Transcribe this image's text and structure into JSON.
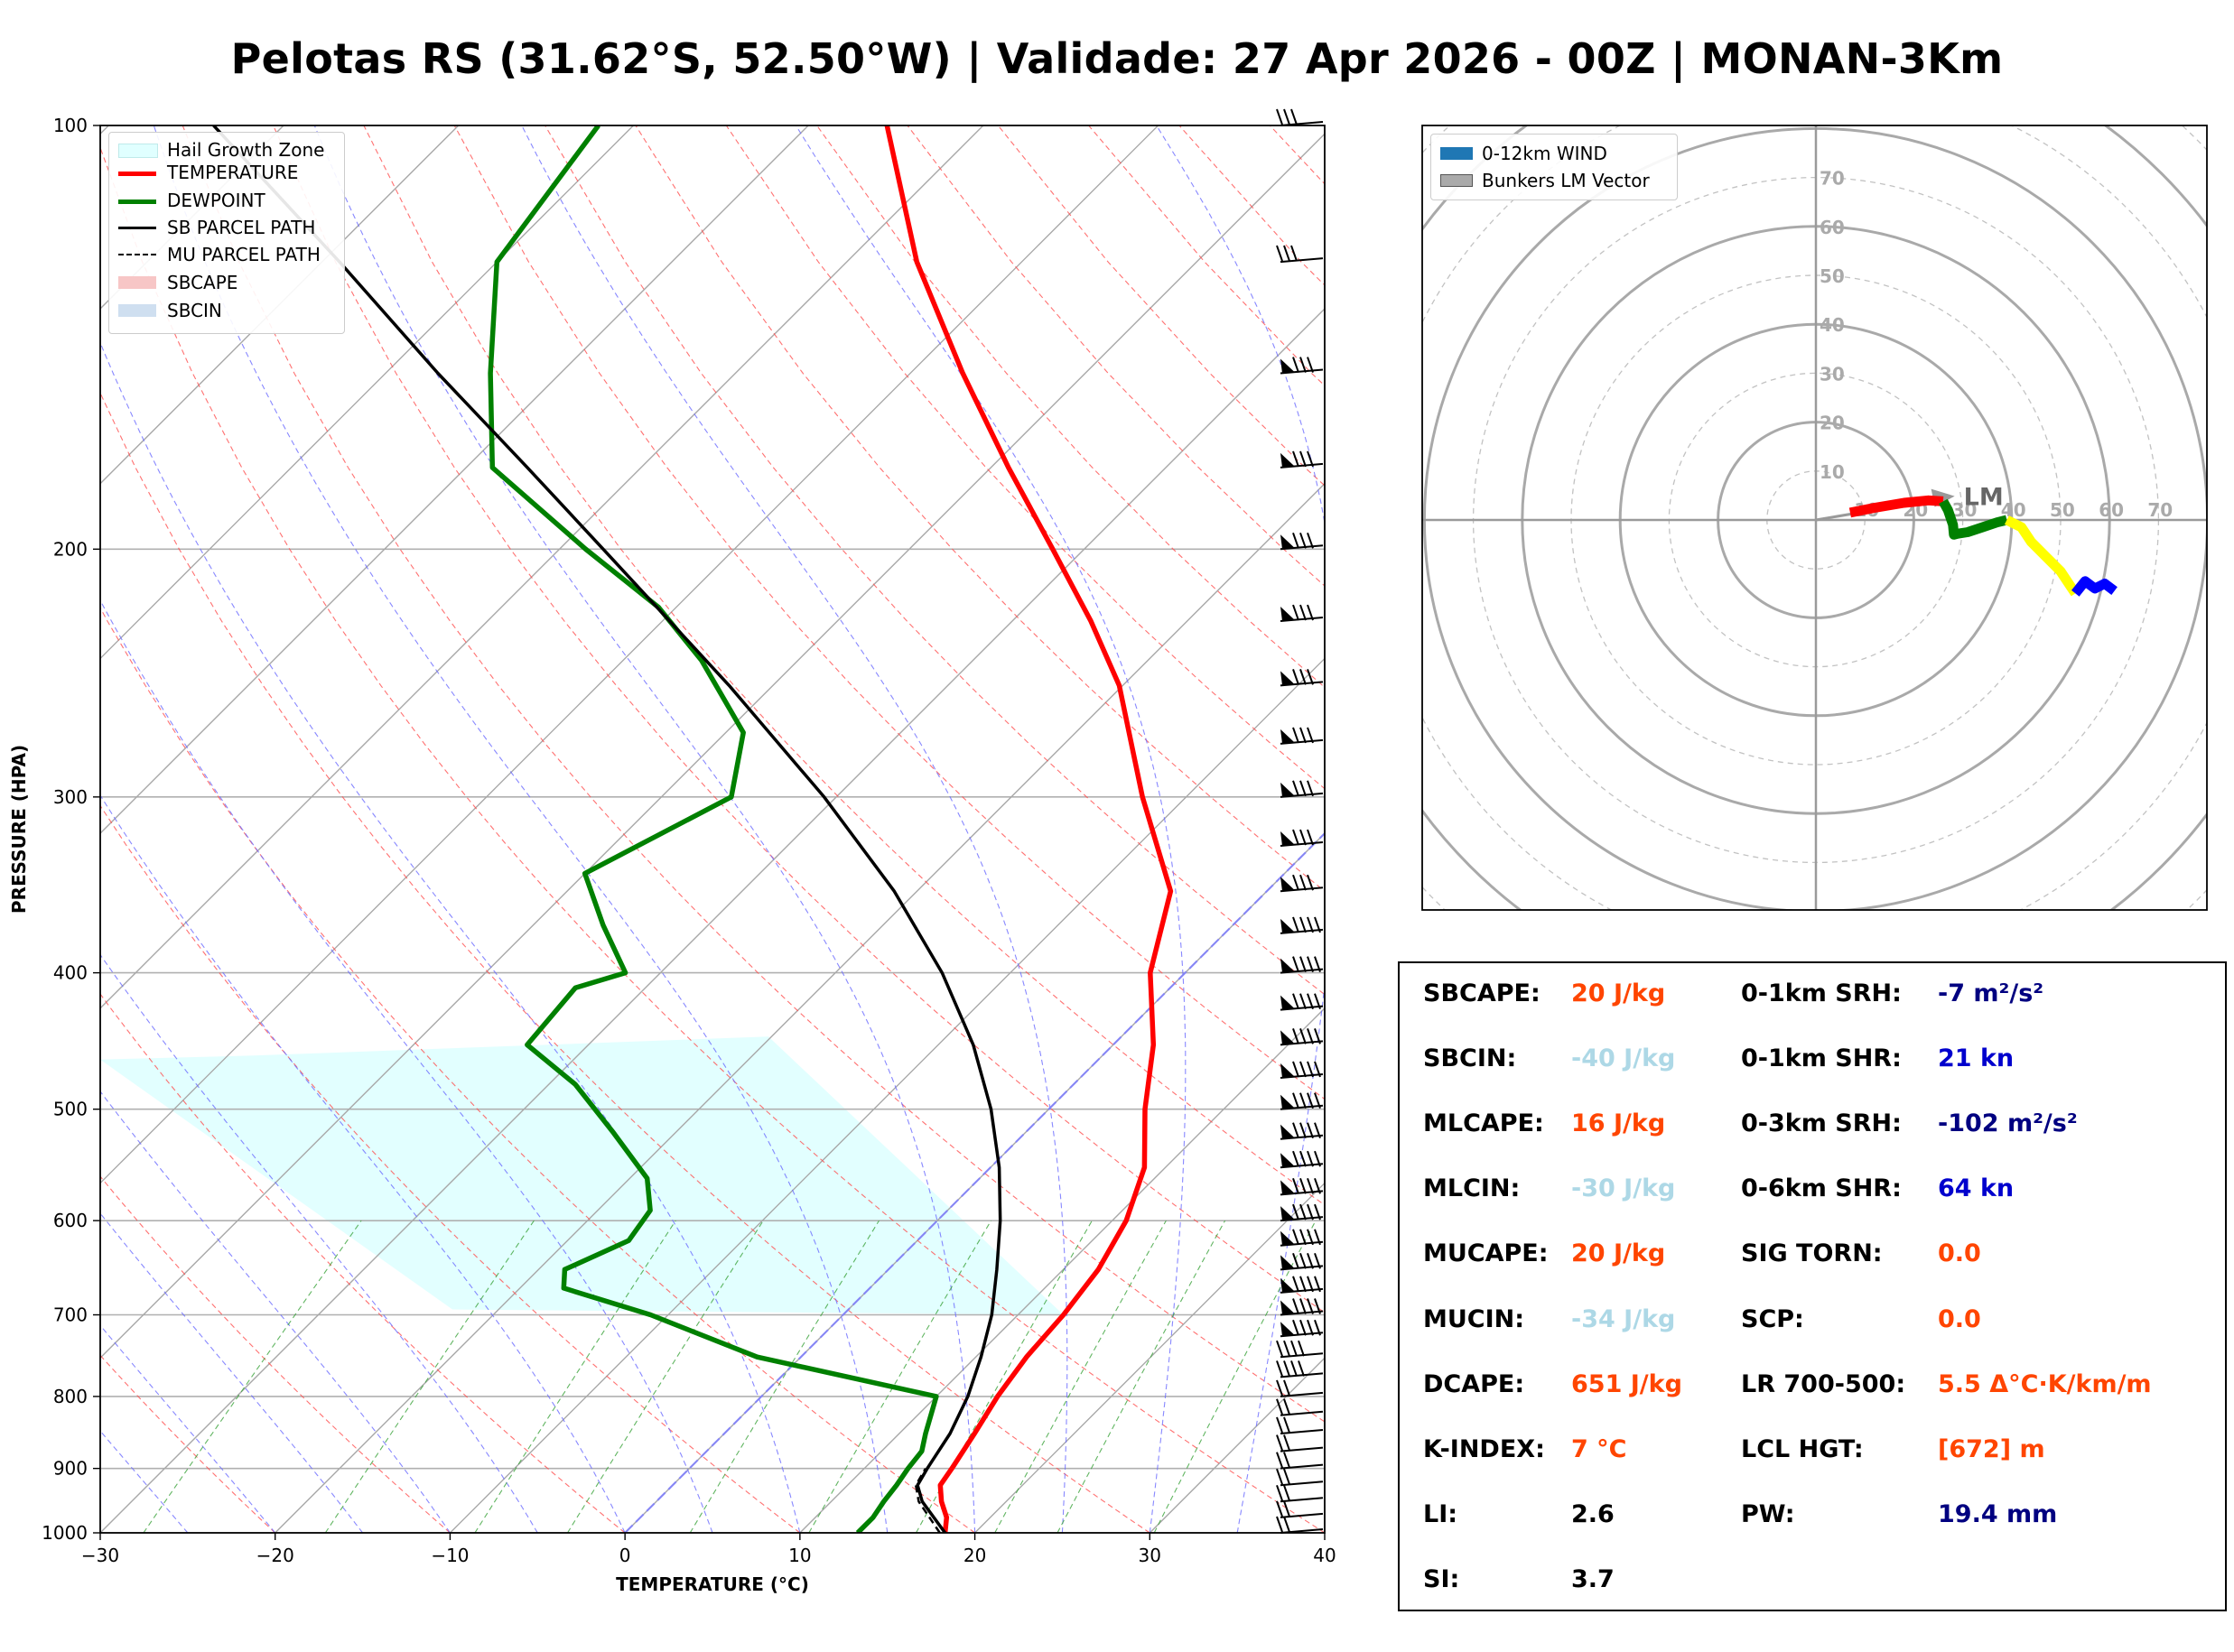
{
  "title": "Pelotas RS (31.62°S, 52.50°W) | Validade: 27 Apr 2026 - 00Z | MONAN-3Km",
  "skewt": {
    "xlabel": "TEMPERATURE (°C)",
    "ylabel": "PRESSURE (HPA)",
    "xlim": [
      -30,
      40
    ],
    "ylim": [
      1000,
      100
    ],
    "xticks": [
      "−30",
      "−20",
      "−10",
      "0",
      "10",
      "20",
      "30",
      "40"
    ],
    "yticks": [
      "1000",
      "900",
      "800",
      "700",
      "600",
      "500",
      "400",
      "300",
      "200",
      "100"
    ],
    "legend": [
      {
        "label": "Hail Growth Zone",
        "color": "#e0ffff"
      },
      {
        "label": "TEMPERATURE",
        "color": "#ff0000"
      },
      {
        "label": "DEWPOINT",
        "color": "#008000"
      },
      {
        "label": "SB PARCEL PATH",
        "color": "#000000"
      },
      {
        "label": "MU PARCEL PATH",
        "color": "#000000"
      },
      {
        "label": "SBCAPE",
        "color": "#f7c6c6"
      },
      {
        "label": "SBCIN",
        "color": "#cfdff0"
      }
    ]
  },
  "chart_data": {
    "type": "line",
    "x_axis": "temperature_C",
    "y_axis": "pressure_hPa",
    "series": [
      {
        "name": "TEMPERATURE",
        "color": "#ff0000",
        "points": [
          [
            1000,
            18.3
          ],
          [
            975,
            17.5
          ],
          [
            950,
            16.3
          ],
          [
            925,
            15.3
          ],
          [
            900,
            15.0
          ],
          [
            850,
            14.3
          ],
          [
            800,
            13.5
          ],
          [
            750,
            12.9
          ],
          [
            700,
            12.6
          ],
          [
            650,
            12.0
          ],
          [
            600,
            10.8
          ],
          [
            550,
            8.8
          ],
          [
            500,
            5.5
          ],
          [
            450,
            2.3
          ],
          [
            400,
            -2.0
          ],
          [
            350,
            -5.5
          ],
          [
            300,
            -12.5
          ],
          [
            250,
            -20.2
          ],
          [
            225,
            -25.5
          ],
          [
            200,
            -31.8
          ],
          [
            175,
            -39.0
          ],
          [
            150,
            -47.0
          ],
          [
            125,
            -56.0
          ],
          [
            100,
            -65.5
          ]
        ]
      },
      {
        "name": "DEWPOINT",
        "color": "#008000",
        "points": [
          [
            1000,
            13.3
          ],
          [
            975,
            13.3
          ],
          [
            950,
            13.0
          ],
          [
            925,
            12.8
          ],
          [
            900,
            12.5
          ],
          [
            875,
            12.3
          ],
          [
            850,
            11.5
          ],
          [
            800,
            10.0
          ],
          [
            750,
            -2.5
          ],
          [
            700,
            -11.0
          ],
          [
            670,
            -17.5
          ],
          [
            650,
            -18.5
          ],
          [
            620,
            -16.5
          ],
          [
            590,
            -17.0
          ],
          [
            560,
            -19.0
          ],
          [
            520,
            -23.5
          ],
          [
            480,
            -28.5
          ],
          [
            450,
            -33.5
          ],
          [
            410,
            -34.0
          ],
          [
            400,
            -32.0
          ],
          [
            370,
            -36.0
          ],
          [
            340,
            -40.0
          ],
          [
            300,
            -36.0
          ],
          [
            270,
            -39.0
          ],
          [
            240,
            -45.5
          ],
          [
            220,
            -51.0
          ],
          [
            200,
            -58.5
          ],
          [
            175,
            -68.5
          ],
          [
            150,
            -74.0
          ],
          [
            125,
            -80.0
          ],
          [
            100,
            -82.0
          ]
        ]
      },
      {
        "name": "SB PARCEL PATH",
        "color": "#000000",
        "points": [
          [
            1000,
            18.3
          ],
          [
            950,
            15.2
          ],
          [
            925,
            14.0
          ],
          [
            900,
            13.6
          ],
          [
            850,
            12.9
          ],
          [
            800,
            11.8
          ],
          [
            750,
            10.3
          ],
          [
            700,
            8.5
          ],
          [
            650,
            6.2
          ],
          [
            600,
            3.6
          ],
          [
            550,
            0.5
          ],
          [
            500,
            -3.3
          ],
          [
            450,
            -8.0
          ],
          [
            400,
            -13.9
          ],
          [
            350,
            -21.3
          ],
          [
            300,
            -30.7
          ],
          [
            250,
            -42.5
          ],
          [
            200,
            -57.5
          ],
          [
            175,
            -66.5
          ],
          [
            150,
            -77.0
          ],
          [
            125,
            -89.0
          ],
          [
            100,
            -104.0
          ]
        ]
      },
      {
        "name": "MU PARCEL PATH",
        "color": "#000000",
        "points": [
          [
            1000,
            18.0
          ],
          [
            950,
            15.0
          ],
          [
            925,
            13.9
          ],
          [
            900,
            13.5
          ]
        ]
      }
    ],
    "hail_growth_zone": {
      "p_bottom": [
        700,
        461
      ],
      "p_top": [
        680,
        440
      ]
    },
    "wind_barb_pressures": [
      1000,
      975,
      950,
      925,
      900,
      875,
      850,
      825,
      800,
      775,
      750,
      725,
      700,
      675,
      650,
      625,
      600,
      575,
      550,
      525,
      500,
      475,
      450,
      425,
      400,
      375,
      350,
      325,
      300,
      275,
      250,
      225,
      200,
      175,
      150,
      125,
      100
    ]
  },
  "hodograph": {
    "legend": [
      {
        "label": "0-12km WIND",
        "color": "#1f77b4"
      },
      {
        "label": "Bunkers LM Vector",
        "color": "#999999"
      }
    ],
    "ring_labels_vertical": [
      "10",
      "20",
      "30",
      "40",
      "50",
      "60",
      "70"
    ],
    "ring_labels_horizontal": [
      "10",
      "20",
      "30",
      "40",
      "50",
      "60",
      "70"
    ],
    "lm_label": "LM",
    "lm_vector": {
      "u": 26.5,
      "v": 4.5
    },
    "segments": [
      {
        "color": "#ff0000",
        "points": [
          [
            7,
            1.5
          ],
          [
            12,
            2.5
          ],
          [
            18,
            3.5
          ],
          [
            23,
            4.0
          ],
          [
            26,
            3.8
          ]
        ]
      },
      {
        "color": "#008000",
        "points": [
          [
            26,
            3.8
          ],
          [
            27,
            2.0
          ],
          [
            28,
            -1.0
          ],
          [
            28.2,
            -3.0
          ],
          [
            29,
            -2.8
          ],
          [
            31,
            -2.5
          ],
          [
            34,
            -1.5
          ],
          [
            37,
            -0.5
          ],
          [
            39,
            0.0
          ]
        ]
      },
      {
        "color": "#ffff00",
        "points": [
          [
            39,
            0.0
          ],
          [
            42,
            -1.5
          ],
          [
            44,
            -4.5
          ],
          [
            47,
            -7.5
          ],
          [
            50,
            -10.5
          ],
          [
            52,
            -13.5
          ],
          [
            53,
            -15.0
          ]
        ]
      },
      {
        "color": "#0000ff",
        "points": [
          [
            53,
            -15.0
          ],
          [
            55,
            -12.5
          ],
          [
            57,
            -14.0
          ],
          [
            59,
            -13.0
          ],
          [
            61,
            -14.5
          ]
        ]
      }
    ]
  },
  "indices": {
    "left": [
      {
        "label": "SBCAPE:",
        "value": "20 J/kg",
        "color": "#ff4500"
      },
      {
        "label": "SBCIN:",
        "value": "-40 J/kg",
        "color": "#add8e6"
      },
      {
        "label": "MLCAPE:",
        "value": "16 J/kg",
        "color": "#ff4500"
      },
      {
        "label": "MLCIN:",
        "value": "-30 J/kg",
        "color": "#add8e6"
      },
      {
        "label": "MUCAPE:",
        "value": "20 J/kg",
        "color": "#ff4500"
      },
      {
        "label": "MUCIN:",
        "value": "-34 J/kg",
        "color": "#add8e6"
      },
      {
        "label": "DCAPE:",
        "value": "651 J/kg",
        "color": "#ff4500"
      },
      {
        "label": "K-INDEX:",
        "value": "7 °C",
        "color": "#ff4500"
      },
      {
        "label": "LI:",
        "value": "2.6",
        "color": "#000000"
      },
      {
        "label": "SI:",
        "value": "3.7",
        "color": "#000000"
      }
    ],
    "right": [
      {
        "label": "0-1km SRH:",
        "value": "-7 m²/s²",
        "color": "#000080"
      },
      {
        "label": "0-1km SHR:",
        "value": "21 kn",
        "color": "#0000cd"
      },
      {
        "label": "0-3km SRH:",
        "value": "-102 m²/s²",
        "color": "#000080"
      },
      {
        "label": "0-6km SHR:",
        "value": "64 kn",
        "color": "#0000cd"
      },
      {
        "label": "SIG TORN:",
        "value": "0.0",
        "color": "#ff4500"
      },
      {
        "label": "SCP:",
        "value": "0.0",
        "color": "#ff4500"
      },
      {
        "label": "LR 700-500:",
        "value": "5.5 Δ°C·K/km/m",
        "color": "#ff4500"
      },
      {
        "label": "LCL HGT:",
        "value": "[672] m",
        "color": "#ff4500"
      },
      {
        "label": "PW:",
        "value": "19.4 mm",
        "color": "#000080"
      }
    ]
  }
}
